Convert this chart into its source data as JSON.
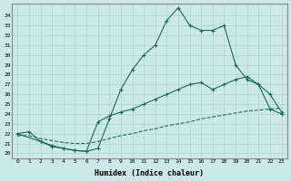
{
  "xlabel": "Humidex (Indice chaleur)",
  "bg_color": "#cce8e8",
  "grid_color": "#aad4d4",
  "line_color": "#1a6b5a",
  "xlim": [
    -0.5,
    23.5
  ],
  "ylim": [
    19.5,
    35.2
  ],
  "xticks": [
    0,
    1,
    2,
    3,
    4,
    5,
    6,
    7,
    8,
    9,
    10,
    11,
    12,
    13,
    14,
    15,
    16,
    17,
    18,
    19,
    20,
    21,
    22,
    23
  ],
  "yticks": [
    20,
    21,
    22,
    23,
    24,
    25,
    26,
    27,
    28,
    29,
    30,
    31,
    32,
    33,
    34
  ],
  "line1_x": [
    0,
    1,
    2,
    3,
    4,
    5,
    6,
    7,
    8,
    9,
    10,
    11,
    12,
    13,
    14,
    15,
    16,
    17,
    18,
    19,
    20,
    21,
    22,
    23
  ],
  "line1_y": [
    22.0,
    22.2,
    21.2,
    20.7,
    20.5,
    20.3,
    20.2,
    20.5,
    23.5,
    26.5,
    28.5,
    30.0,
    31.0,
    33.5,
    34.8,
    33.0,
    32.5,
    32.5,
    33.0,
    29.0,
    27.5,
    27.0,
    24.5,
    24.0
  ],
  "line2_x": [
    0,
    2,
    3,
    4,
    5,
    6,
    7,
    8,
    9,
    10,
    11,
    12,
    13,
    14,
    15,
    16,
    17,
    18,
    19,
    20,
    21,
    22,
    23
  ],
  "line2_y": [
    22.0,
    21.2,
    20.8,
    20.5,
    20.3,
    20.2,
    23.2,
    23.8,
    24.2,
    24.5,
    25.0,
    25.5,
    26.0,
    26.5,
    27.0,
    27.2,
    26.5,
    27.0,
    27.5,
    27.8,
    27.0,
    26.0,
    24.2
  ],
  "line3_x": [
    0,
    1,
    2,
    3,
    4,
    5,
    6,
    7,
    8,
    9,
    10,
    11,
    12,
    13,
    14,
    15,
    16,
    17,
    18,
    19,
    20,
    21,
    22,
    23
  ],
  "line3_y": [
    21.8,
    21.8,
    21.5,
    21.3,
    21.1,
    21.0,
    21.0,
    21.2,
    21.5,
    21.8,
    22.0,
    22.3,
    22.5,
    22.8,
    23.0,
    23.2,
    23.5,
    23.7,
    23.9,
    24.1,
    24.3,
    24.4,
    24.5,
    24.6
  ]
}
